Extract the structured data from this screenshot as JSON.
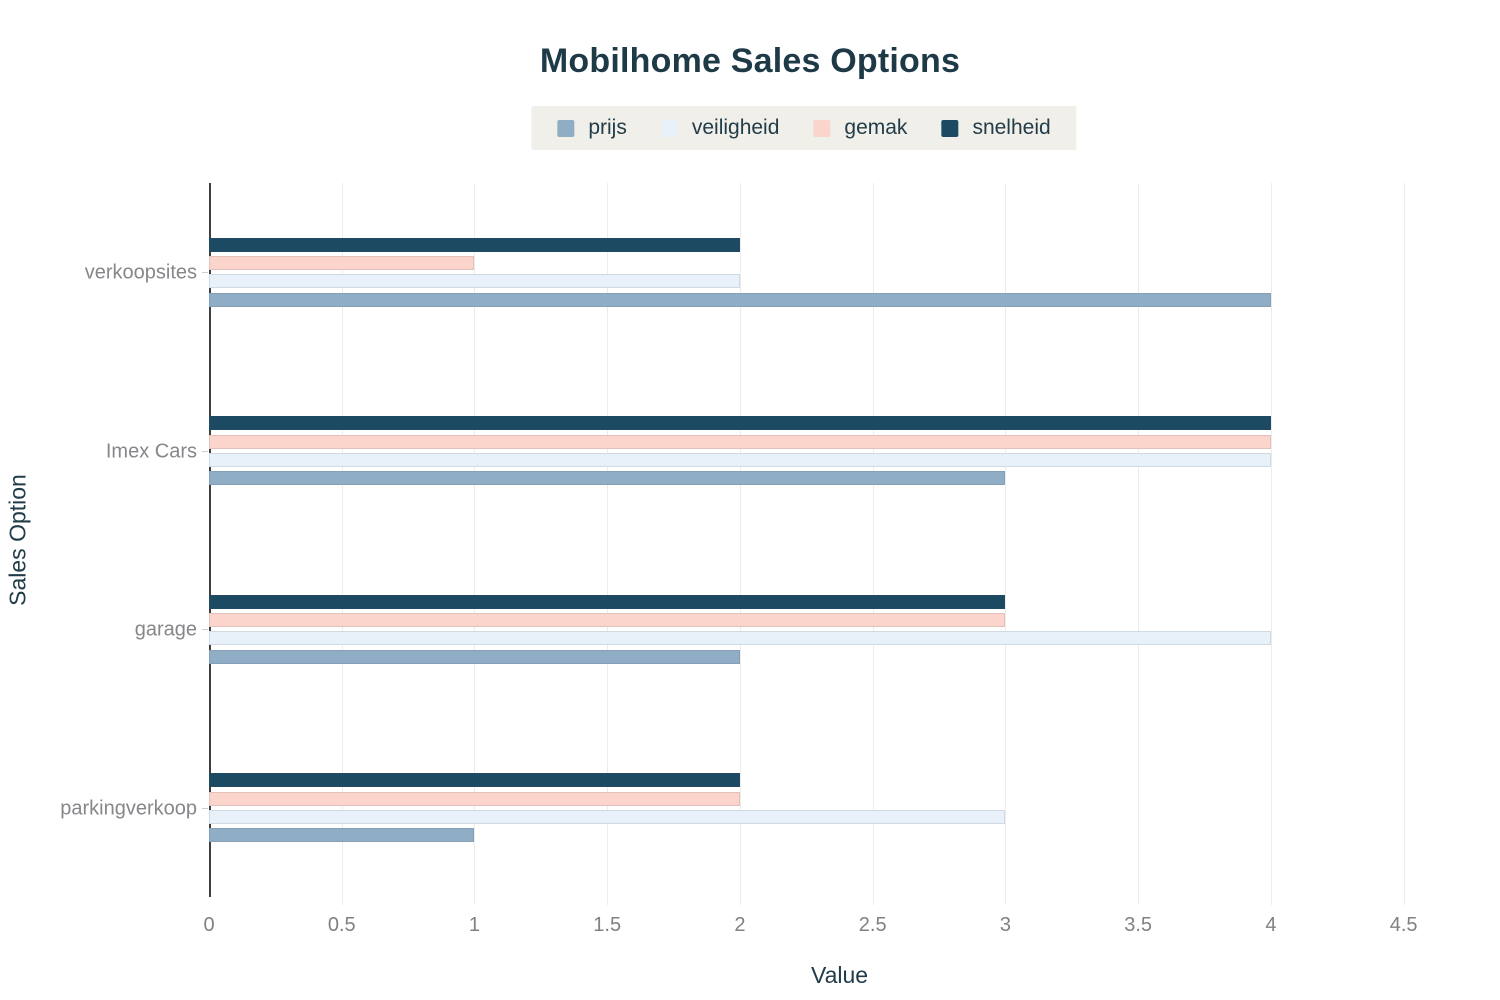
{
  "chart_data": {
    "type": "bar",
    "orientation": "horizontal",
    "title": "Mobilhome Sales Options",
    "xlabel": "Value",
    "ylabel": "Sales Option",
    "categories": [
      "verkoopsites",
      "Imex Cars",
      "garage",
      "parkingverkoop"
    ],
    "series": [
      {
        "name": "prijs",
        "color": "#8fadc5",
        "values": [
          4,
          3,
          2,
          1
        ]
      },
      {
        "name": "veiligheid",
        "color": "#e8f1f9",
        "values": [
          2,
          4,
          4,
          3
        ]
      },
      {
        "name": "gemak",
        "color": "#fbd5cb",
        "values": [
          1,
          4,
          3,
          2
        ]
      },
      {
        "name": "snelheid",
        "color": "#1d4a63",
        "values": [
          2,
          4,
          3,
          2
        ]
      }
    ],
    "xlim": [
      0,
      4.75
    ],
    "xticks": [
      0,
      0.5,
      1,
      1.5,
      2,
      2.5,
      3,
      3.5,
      4,
      4.5
    ],
    "grid": true,
    "legend_position": "top-center",
    "colors": {
      "title_text": "#1e3a47",
      "axis_title_text": "#203c49",
      "tick_label_text": "#7f8184",
      "category_label_text": "#85878a",
      "gridline": "#ececec",
      "zero_line": "#3f3f3f",
      "legend_background": "#f0efe9",
      "legend_text": "#223c49"
    }
  }
}
